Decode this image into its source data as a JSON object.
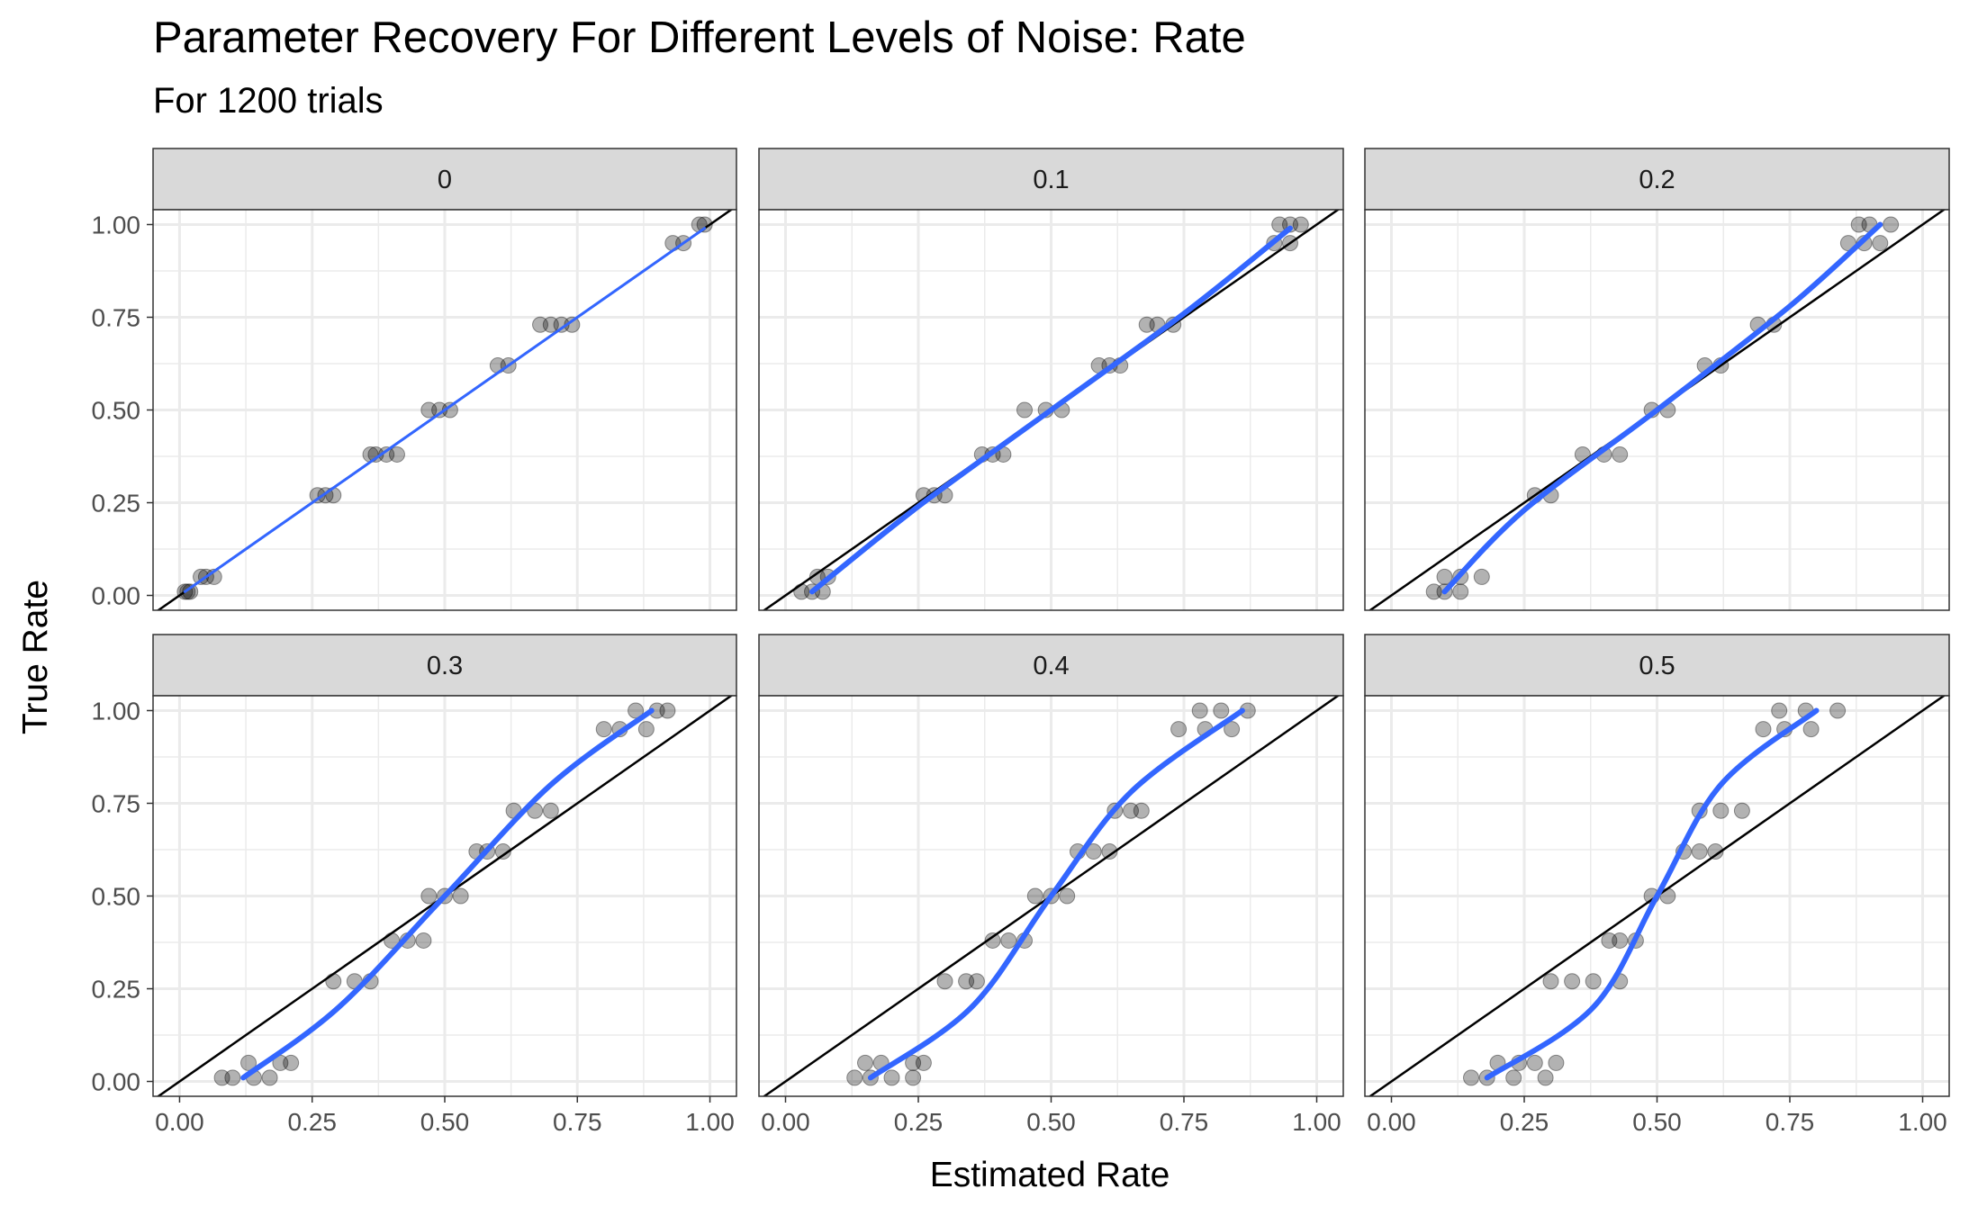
{
  "title": "Parameter Recovery For Different Levels of Noise: Rate",
  "subtitle": "For 1200 trials",
  "colors": {
    "smooth": "#3366FF",
    "point": "#000000",
    "strip_bg": "#D9D9D9",
    "grid": "#EBEBEB"
  },
  "chart_data": {
    "type": "scatter",
    "title": "Parameter Recovery For Different Levels of Noise: Rate",
    "subtitle": "For 1200 trials",
    "xlabel": "Estimated Rate",
    "ylabel": "True Rate",
    "xlim": [
      0,
      1
    ],
    "ylim": [
      0,
      1
    ],
    "x_ticks": [
      "0.00",
      "0.25",
      "0.50",
      "0.75",
      "1.00"
    ],
    "y_ticks": [
      "0.00",
      "0.25",
      "0.50",
      "0.75",
      "1.00"
    ],
    "grid": true,
    "reference_line": "identity (y = x)",
    "smooth_line": "blue loess fit",
    "true_rate_levels": [
      0.01,
      0.05,
      0.27,
      0.38,
      0.5,
      0.62,
      0.73,
      0.95,
      1.0
    ],
    "panels": [
      {
        "label": "0",
        "points": [
          [
            0.01,
            0.01
          ],
          [
            0.015,
            0.01
          ],
          [
            0.02,
            0.01
          ],
          [
            0.04,
            0.05
          ],
          [
            0.05,
            0.05
          ],
          [
            0.065,
            0.05
          ],
          [
            0.26,
            0.27
          ],
          [
            0.275,
            0.27
          ],
          [
            0.29,
            0.27
          ],
          [
            0.36,
            0.38
          ],
          [
            0.37,
            0.38
          ],
          [
            0.39,
            0.38
          ],
          [
            0.41,
            0.38
          ],
          [
            0.47,
            0.5
          ],
          [
            0.49,
            0.5
          ],
          [
            0.51,
            0.5
          ],
          [
            0.6,
            0.62
          ],
          [
            0.62,
            0.62
          ],
          [
            0.68,
            0.73
          ],
          [
            0.7,
            0.73
          ],
          [
            0.72,
            0.73
          ],
          [
            0.74,
            0.73
          ],
          [
            0.93,
            0.95
          ],
          [
            0.95,
            0.95
          ],
          [
            0.98,
            1.0
          ],
          [
            0.99,
            1.0
          ]
        ],
        "smooth": [
          [
            0.01,
            0.01
          ],
          [
            0.25,
            0.25
          ],
          [
            0.5,
            0.5
          ],
          [
            0.75,
            0.75
          ],
          [
            0.99,
            0.99
          ]
        ]
      },
      {
        "label": "0.1",
        "points": [
          [
            0.03,
            0.01
          ],
          [
            0.05,
            0.01
          ],
          [
            0.07,
            0.01
          ],
          [
            0.06,
            0.05
          ],
          [
            0.08,
            0.05
          ],
          [
            0.26,
            0.27
          ],
          [
            0.28,
            0.27
          ],
          [
            0.3,
            0.27
          ],
          [
            0.37,
            0.38
          ],
          [
            0.39,
            0.38
          ],
          [
            0.41,
            0.38
          ],
          [
            0.45,
            0.5
          ],
          [
            0.49,
            0.5
          ],
          [
            0.52,
            0.5
          ],
          [
            0.59,
            0.62
          ],
          [
            0.61,
            0.62
          ],
          [
            0.63,
            0.62
          ],
          [
            0.68,
            0.73
          ],
          [
            0.7,
            0.73
          ],
          [
            0.73,
            0.73
          ],
          [
            0.92,
            0.95
          ],
          [
            0.95,
            0.95
          ],
          [
            0.93,
            1.0
          ],
          [
            0.95,
            1.0
          ],
          [
            0.97,
            1.0
          ]
        ],
        "smooth": [
          [
            0.05,
            0.01
          ],
          [
            0.25,
            0.24
          ],
          [
            0.5,
            0.5
          ],
          [
            0.75,
            0.76
          ],
          [
            0.95,
            0.99
          ]
        ]
      },
      {
        "label": "0.2",
        "points": [
          [
            0.08,
            0.01
          ],
          [
            0.1,
            0.01
          ],
          [
            0.13,
            0.01
          ],
          [
            0.1,
            0.05
          ],
          [
            0.13,
            0.05
          ],
          [
            0.17,
            0.05
          ],
          [
            0.27,
            0.27
          ],
          [
            0.3,
            0.27
          ],
          [
            0.36,
            0.38
          ],
          [
            0.4,
            0.38
          ],
          [
            0.43,
            0.38
          ],
          [
            0.49,
            0.5
          ],
          [
            0.52,
            0.5
          ],
          [
            0.59,
            0.62
          ],
          [
            0.62,
            0.62
          ],
          [
            0.69,
            0.73
          ],
          [
            0.72,
            0.73
          ],
          [
            0.86,
            0.95
          ],
          [
            0.89,
            0.95
          ],
          [
            0.92,
            0.95
          ],
          [
            0.88,
            1.0
          ],
          [
            0.9,
            1.0
          ],
          [
            0.94,
            1.0
          ]
        ],
        "smooth": [
          [
            0.1,
            0.01
          ],
          [
            0.25,
            0.23
          ],
          [
            0.5,
            0.5
          ],
          [
            0.75,
            0.78
          ],
          [
            0.92,
            1.0
          ]
        ]
      },
      {
        "label": "0.3",
        "points": [
          [
            0.08,
            0.01
          ],
          [
            0.1,
            0.01
          ],
          [
            0.14,
            0.01
          ],
          [
            0.17,
            0.01
          ],
          [
            0.13,
            0.05
          ],
          [
            0.19,
            0.05
          ],
          [
            0.21,
            0.05
          ],
          [
            0.29,
            0.27
          ],
          [
            0.33,
            0.27
          ],
          [
            0.36,
            0.27
          ],
          [
            0.4,
            0.38
          ],
          [
            0.43,
            0.38
          ],
          [
            0.46,
            0.38
          ],
          [
            0.47,
            0.5
          ],
          [
            0.5,
            0.5
          ],
          [
            0.53,
            0.5
          ],
          [
            0.56,
            0.62
          ],
          [
            0.58,
            0.62
          ],
          [
            0.61,
            0.62
          ],
          [
            0.63,
            0.73
          ],
          [
            0.67,
            0.73
          ],
          [
            0.7,
            0.73
          ],
          [
            0.8,
            0.95
          ],
          [
            0.83,
            0.95
          ],
          [
            0.88,
            0.95
          ],
          [
            0.86,
            1.0
          ],
          [
            0.9,
            1.0
          ],
          [
            0.92,
            1.0
          ]
        ],
        "smooth": [
          [
            0.12,
            0.01
          ],
          [
            0.3,
            0.2
          ],
          [
            0.5,
            0.5
          ],
          [
            0.7,
            0.8
          ],
          [
            0.89,
            1.0
          ]
        ]
      },
      {
        "label": "0.4",
        "points": [
          [
            0.13,
            0.01
          ],
          [
            0.16,
            0.01
          ],
          [
            0.2,
            0.01
          ],
          [
            0.24,
            0.01
          ],
          [
            0.15,
            0.05
          ],
          [
            0.18,
            0.05
          ],
          [
            0.24,
            0.05
          ],
          [
            0.26,
            0.05
          ],
          [
            0.3,
            0.27
          ],
          [
            0.34,
            0.27
          ],
          [
            0.36,
            0.27
          ],
          [
            0.39,
            0.38
          ],
          [
            0.42,
            0.38
          ],
          [
            0.45,
            0.38
          ],
          [
            0.47,
            0.5
          ],
          [
            0.5,
            0.5
          ],
          [
            0.53,
            0.5
          ],
          [
            0.55,
            0.62
          ],
          [
            0.58,
            0.62
          ],
          [
            0.61,
            0.62
          ],
          [
            0.62,
            0.73
          ],
          [
            0.65,
            0.73
          ],
          [
            0.67,
            0.73
          ],
          [
            0.74,
            0.95
          ],
          [
            0.79,
            0.95
          ],
          [
            0.84,
            0.95
          ],
          [
            0.78,
            1.0
          ],
          [
            0.82,
            1.0
          ],
          [
            0.87,
            1.0
          ]
        ],
        "smooth": [
          [
            0.16,
            0.01
          ],
          [
            0.35,
            0.2
          ],
          [
            0.5,
            0.5
          ],
          [
            0.65,
            0.78
          ],
          [
            0.86,
            1.0
          ]
        ]
      },
      {
        "label": "0.5",
        "points": [
          [
            0.15,
            0.01
          ],
          [
            0.18,
            0.01
          ],
          [
            0.23,
            0.01
          ],
          [
            0.29,
            0.01
          ],
          [
            0.2,
            0.05
          ],
          [
            0.24,
            0.05
          ],
          [
            0.27,
            0.05
          ],
          [
            0.31,
            0.05
          ],
          [
            0.3,
            0.27
          ],
          [
            0.34,
            0.27
          ],
          [
            0.38,
            0.27
          ],
          [
            0.43,
            0.27
          ],
          [
            0.41,
            0.38
          ],
          [
            0.43,
            0.38
          ],
          [
            0.46,
            0.38
          ],
          [
            0.49,
            0.5
          ],
          [
            0.52,
            0.5
          ],
          [
            0.55,
            0.62
          ],
          [
            0.58,
            0.62
          ],
          [
            0.61,
            0.62
          ],
          [
            0.58,
            0.73
          ],
          [
            0.62,
            0.73
          ],
          [
            0.66,
            0.73
          ],
          [
            0.7,
            0.95
          ],
          [
            0.74,
            0.95
          ],
          [
            0.79,
            0.95
          ],
          [
            0.73,
            1.0
          ],
          [
            0.78,
            1.0
          ],
          [
            0.84,
            1.0
          ]
        ],
        "smooth": [
          [
            0.18,
            0.01
          ],
          [
            0.38,
            0.2
          ],
          [
            0.5,
            0.5
          ],
          [
            0.62,
            0.8
          ],
          [
            0.8,
            1.0
          ]
        ]
      }
    ]
  }
}
